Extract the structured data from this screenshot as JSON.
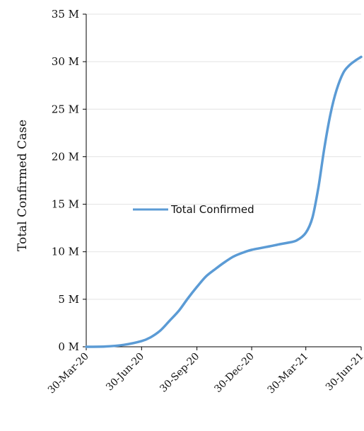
{
  "chart_data": {
    "type": "line",
    "title": "",
    "xlabel": "",
    "ylabel": "Total Confirmed Case",
    "ylim": [
      0,
      35000000
    ],
    "y_ticks": [
      0,
      5000000,
      10000000,
      15000000,
      20000000,
      25000000,
      30000000,
      35000000
    ],
    "y_tick_labels": [
      "0 M",
      "5 M",
      "10 M",
      "15 M",
      "20 M",
      "25 M",
      "30 M",
      "35 M"
    ],
    "x_range": [
      "2020-03-30",
      "2021-06-30"
    ],
    "x_ticks": [
      "2020-03-30",
      "2020-06-30",
      "2020-09-30",
      "2020-12-30",
      "2021-03-30",
      "2021-06-30"
    ],
    "x_tick_labels": [
      "30-Mar-20",
      "30-Jun-20",
      "30-Sep-20",
      "30-Dec-20",
      "30-Mar-21",
      "30-Jun-21"
    ],
    "grid": true,
    "legend": {
      "position": "center-left",
      "label": "Total Confirmed"
    },
    "series": [
      {
        "name": "Total Confirmed",
        "color": "#5b9bd5",
        "x": [
          "2020-03-30",
          "2020-04-30",
          "2020-05-31",
          "2020-06-30",
          "2020-07-15",
          "2020-07-31",
          "2020-08-15",
          "2020-08-31",
          "2020-09-15",
          "2020-09-30",
          "2020-10-15",
          "2020-10-31",
          "2020-11-15",
          "2020-11-30",
          "2020-12-15",
          "2020-12-30",
          "2021-01-15",
          "2021-01-31",
          "2021-02-15",
          "2021-02-28",
          "2021-03-15",
          "2021-03-30",
          "2021-04-10",
          "2021-04-20",
          "2021-04-30",
          "2021-05-10",
          "2021-05-20",
          "2021-05-31",
          "2021-06-10",
          "2021-06-20",
          "2021-06-30"
        ],
        "values": [
          1000,
          30000,
          200000,
          600000,
          1000000,
          1700000,
          2700000,
          3800000,
          5100000,
          6300000,
          7400000,
          8200000,
          8900000,
          9500000,
          9900000,
          10200000,
          10400000,
          10600000,
          10800000,
          10950000,
          11200000,
          12000000,
          13600000,
          16800000,
          21000000,
          24500000,
          27000000,
          28800000,
          29600000,
          30100000,
          30500000
        ]
      }
    ]
  }
}
